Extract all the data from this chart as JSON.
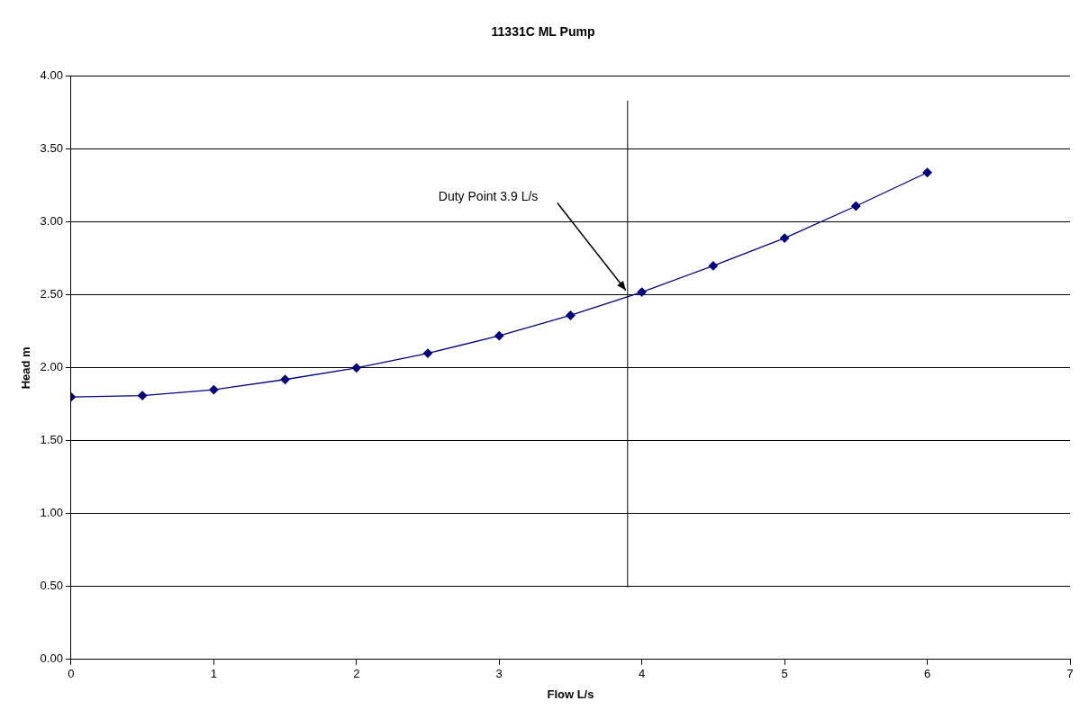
{
  "chart_data": {
    "type": "line",
    "title": "11331C ML Pump",
    "xlabel": "Flow L/s",
    "ylabel": "Head m",
    "x": [
      0,
      0.5,
      1,
      1.5,
      2,
      2.5,
      3,
      3.5,
      4,
      4.5,
      5,
      5.5,
      6
    ],
    "series": [
      {
        "color": "#000080",
        "values": [
          1.8,
          1.81,
          1.85,
          1.92,
          2.0,
          2.1,
          2.22,
          2.36,
          2.52,
          2.7,
          2.89,
          3.11,
          3.34
        ]
      }
    ],
    "xlim": [
      0,
      7
    ],
    "xticks": [
      0,
      1,
      2,
      3,
      4,
      5,
      6,
      7
    ],
    "ylim": [
      0,
      4
    ],
    "yticks": [
      {
        "value": 0,
        "label": "0.00"
      },
      {
        "value": 0.5,
        "label": "0.50"
      },
      {
        "value": 1,
        "label": "1.00"
      },
      {
        "value": 1.5,
        "label": "1.50"
      },
      {
        "value": 2,
        "label": "2.00"
      },
      {
        "value": 2.5,
        "label": "2.50"
      },
      {
        "value": 3,
        "label": "3.00"
      },
      {
        "value": 3.5,
        "label": "3.50"
      },
      {
        "value": 4,
        "label": "4.00"
      }
    ],
    "grid": "y",
    "legend": false,
    "marker": "diamond",
    "line_style": "solid",
    "ref_lines": [
      {
        "axis": "x",
        "value": 3.9,
        "color": "#000000"
      }
    ],
    "annotations": [
      "Duty Point 3.9 L/s"
    ]
  }
}
